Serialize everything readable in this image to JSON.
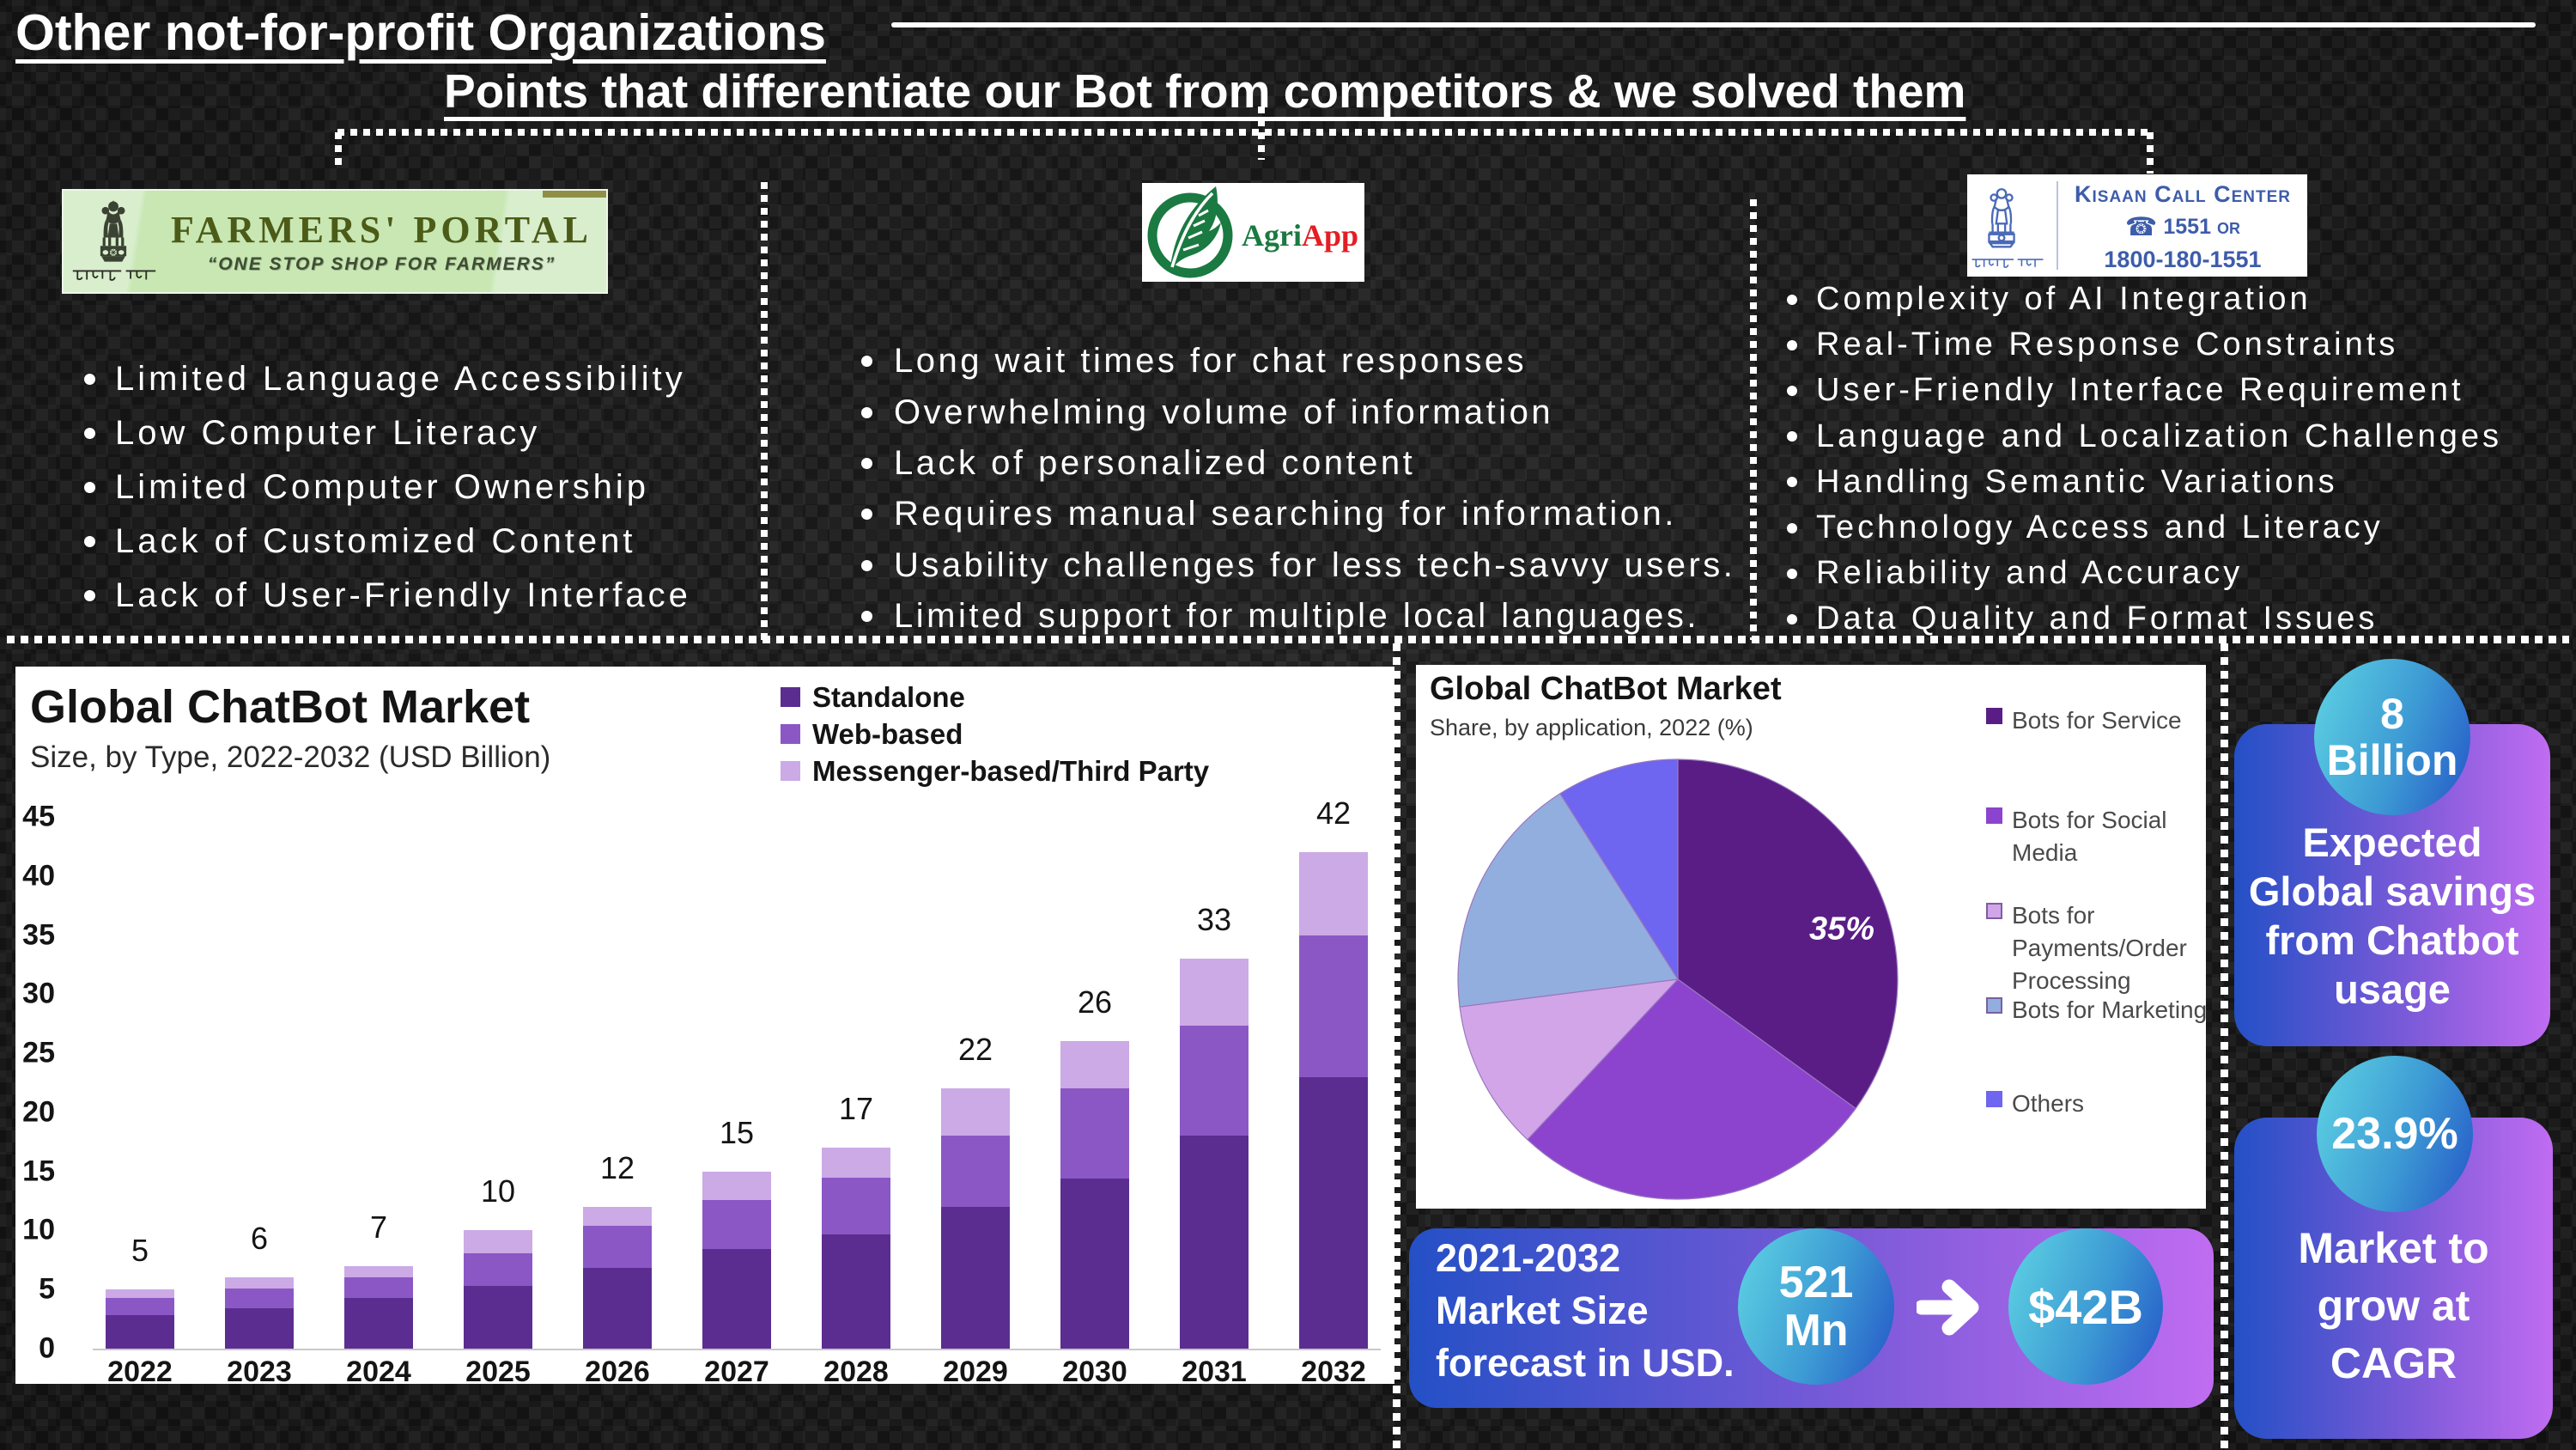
{
  "slide": {
    "title": "Other not-for-profit Organizations",
    "subtitle": "Points that differentiate our Bot from competitors & we solved them"
  },
  "competitors": [
    {
      "name": "Farmers' Portal",
      "logo": {
        "title": "FARMERS' PORTAL",
        "tagline": "“ONE STOP SHOP FOR FARMERS”",
        "emblem_caption": "सत्यमेव जयते"
      },
      "issues": [
        "Limited Language Accessibility",
        "Low Computer Literacy",
        "Limited Computer Ownership",
        "Lack of Customized Content",
        "Lack of User-Friendly Interface"
      ]
    },
    {
      "name": "AgriApp",
      "logo": {
        "brand_green": "Agri",
        "brand_red": "App"
      },
      "issues": [
        "Long wait times for chat responses",
        "Overwhelming volume of information",
        "Lack of personalized content",
        "Requires manual searching for information.",
        "Usability challenges for less tech-savvy users.",
        "Limited support for multiple local languages."
      ]
    },
    {
      "name": "Kisaan Call Center",
      "logo": {
        "title": "Kisaan Call Center",
        "phone_short": "1551",
        "or_label": "OR",
        "phone_tollfree": "1800-180-1551",
        "emblem_caption": "सत्यमेव जयते"
      },
      "issues": [
        "Complexity of AI Integration",
        "Real-Time Response Constraints",
        "User-Friendly Interface Requirement",
        "Language and Localization Challenges",
        "Handling Semantic Variations",
        "Technology Access and Literacy",
        "Reliability and Accuracy",
        "Data Quality and Format Issues"
      ]
    }
  ],
  "chart_data": [
    {
      "type": "bar",
      "stacked": true,
      "title": "Global ChatBot Market",
      "subtitle": "Size, by Type, 2022-2032 (USD Billion)",
      "categories": [
        "2022",
        "2023",
        "2024",
        "2025",
        "2026",
        "2027",
        "2028",
        "2029",
        "2030",
        "2031",
        "2032"
      ],
      "series": [
        {
          "name": "Standalone",
          "color": "#5b2d90",
          "values": [
            2.8,
            3.4,
            4.3,
            5.3,
            6.8,
            8.4,
            9.7,
            12.0,
            14.4,
            18.0,
            23.0
          ]
        },
        {
          "name": "Web-based",
          "color": "#8b57c5",
          "values": [
            1.5,
            1.7,
            1.7,
            2.8,
            3.6,
            4.2,
            4.8,
            6.0,
            7.6,
            9.3,
            12.0
          ]
        },
        {
          "name": "Messenger-based/Third Party",
          "color": "#cbaae6",
          "values": [
            0.7,
            0.9,
            1.0,
            1.9,
            1.6,
            2.4,
            2.5,
            4.0,
            4.0,
            5.7,
            7.0
          ]
        }
      ],
      "totals": [
        5,
        6,
        7,
        10,
        12,
        15,
        17,
        22,
        26,
        33,
        42
      ],
      "ylabel": "",
      "xlabel": "",
      "ylim": [
        0,
        45
      ],
      "yticks": [
        0,
        5,
        10,
        15,
        20,
        25,
        30,
        35,
        40,
        45
      ],
      "grid": false,
      "legend_position": "top-right"
    },
    {
      "type": "pie",
      "title": "Global ChatBot Market",
      "subtitle": "Share, by application, 2022 (%)",
      "slices": [
        {
          "label": "Bots for Service",
          "legend_lines": "Bots for Service",
          "value": 35,
          "color": "#5a1d86",
          "data_label": "35%"
        },
        {
          "label": "Bots for Social Media",
          "legend_lines": "Bots for Social\nMedia",
          "value": 27,
          "color": "#8c44ce"
        },
        {
          "label": "Bots for Payments/Order Processing",
          "legend_lines": "Bots for\nPayments/Order\nProcessing",
          "value": 11,
          "color": "#d2a5e9"
        },
        {
          "label": "Bots for Marketing",
          "legend_lines": "Bots for Marketing",
          "value": 18,
          "color": "#92aede"
        },
        {
          "label": "Others",
          "legend_lines": "Others",
          "value": 9,
          "color": "#6e65f0"
        }
      ],
      "start_angle_deg": 0,
      "direction": "clockwise",
      "legend_position": "right"
    }
  ],
  "stats": {
    "savings": {
      "circle_value": "8\nBillion",
      "caption": "Expected\nGlobal savings\nfrom Chatbot\nusage"
    },
    "cagr": {
      "circle_value": "23.9%",
      "caption": "Market to\ngrow at\nCAGR"
    },
    "forecast": {
      "caption": "2021-2032\nMarket Size\nforecast in USD.",
      "from_value": "521\nMn",
      "to_value": "$42B"
    }
  },
  "colors": {
    "background": "#151515",
    "text": "#ffffff",
    "panel": "#ffffff",
    "standalone": "#5b2d90",
    "web_based": "#8b57c5",
    "messenger": "#cbaae6",
    "card_gradient_start": "#2450c6",
    "card_gradient_end": "#c06cf1",
    "circle_gradient_start": "#5fd4e4",
    "circle_gradient_end": "#2456c8"
  }
}
